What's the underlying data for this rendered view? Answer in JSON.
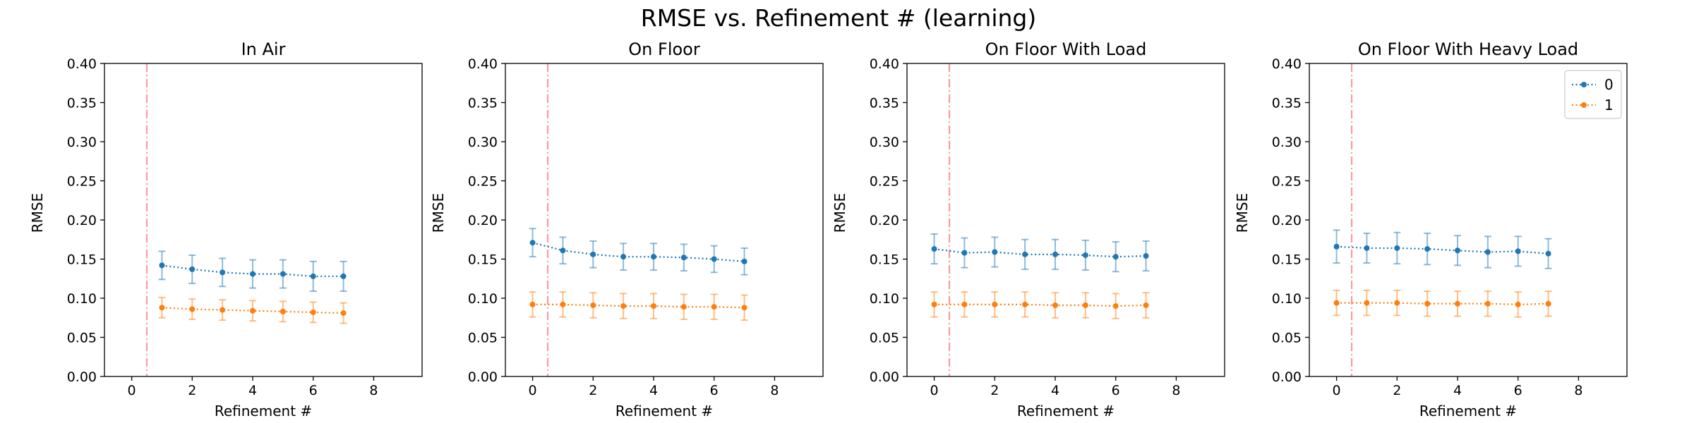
{
  "title": "RMSE vs. Refinement # (learning)",
  "colors": {
    "series_0": "#1f77b4",
    "series_1": "#ff7f0e",
    "vline": "#ff9a9a",
    "axes": "#000000"
  },
  "chart_data": [
    {
      "type": "line",
      "title": "In Air",
      "xlabel": "Refinement #",
      "ylabel": "RMSE",
      "xlim": [
        -0.9,
        9.6
      ],
      "ylim": [
        0,
        0.4
      ],
      "xticks": [
        0,
        2,
        4,
        6,
        8
      ],
      "yticks": [
        0.0,
        0.05,
        0.1,
        0.15,
        0.2,
        0.25,
        0.3,
        0.35,
        0.4
      ],
      "vline": 0.5,
      "series": [
        {
          "name": "0",
          "x": [
            1,
            2,
            3,
            4,
            5,
            6,
            7
          ],
          "values": [
            0.142,
            0.137,
            0.133,
            0.131,
            0.131,
            0.128,
            0.128
          ],
          "errors": [
            0.018,
            0.018,
            0.018,
            0.018,
            0.018,
            0.019,
            0.019
          ]
        },
        {
          "name": "1",
          "x": [
            1,
            2,
            3,
            4,
            5,
            6,
            7
          ],
          "values": [
            0.088,
            0.086,
            0.085,
            0.084,
            0.083,
            0.082,
            0.081
          ],
          "errors": [
            0.013,
            0.013,
            0.013,
            0.013,
            0.013,
            0.013,
            0.013
          ]
        }
      ]
    },
    {
      "type": "line",
      "title": "On Floor",
      "xlabel": "Refinement #",
      "ylabel": "RMSE",
      "xlim": [
        -0.9,
        9.6
      ],
      "ylim": [
        0,
        0.4
      ],
      "xticks": [
        0,
        2,
        4,
        6,
        8
      ],
      "yticks": [
        0.0,
        0.05,
        0.1,
        0.15,
        0.2,
        0.25,
        0.3,
        0.35,
        0.4
      ],
      "vline": 0.5,
      "series": [
        {
          "name": "0",
          "x": [
            0,
            1,
            2,
            3,
            4,
            5,
            6,
            7
          ],
          "values": [
            0.171,
            0.161,
            0.156,
            0.153,
            0.153,
            0.152,
            0.15,
            0.147
          ],
          "errors": [
            0.018,
            0.017,
            0.017,
            0.017,
            0.017,
            0.017,
            0.017,
            0.017
          ]
        },
        {
          "name": "1",
          "x": [
            0,
            1,
            2,
            3,
            4,
            5,
            6,
            7
          ],
          "values": [
            0.092,
            0.092,
            0.091,
            0.09,
            0.09,
            0.089,
            0.089,
            0.088
          ],
          "errors": [
            0.016,
            0.016,
            0.016,
            0.016,
            0.016,
            0.016,
            0.016,
            0.016
          ]
        }
      ]
    },
    {
      "type": "line",
      "title": "On Floor With Load",
      "xlabel": "Refinement #",
      "ylabel": "RMSE",
      "xlim": [
        -0.9,
        9.6
      ],
      "ylim": [
        0,
        0.4
      ],
      "xticks": [
        0,
        2,
        4,
        6,
        8
      ],
      "yticks": [
        0.0,
        0.05,
        0.1,
        0.15,
        0.2,
        0.25,
        0.3,
        0.35,
        0.4
      ],
      "vline": 0.5,
      "series": [
        {
          "name": "0",
          "x": [
            0,
            1,
            2,
            3,
            4,
            5,
            6,
            7
          ],
          "values": [
            0.163,
            0.158,
            0.159,
            0.156,
            0.156,
            0.155,
            0.153,
            0.154
          ],
          "errors": [
            0.019,
            0.019,
            0.019,
            0.019,
            0.019,
            0.019,
            0.019,
            0.019
          ]
        },
        {
          "name": "1",
          "x": [
            0,
            1,
            2,
            3,
            4,
            5,
            6,
            7
          ],
          "values": [
            0.092,
            0.092,
            0.092,
            0.092,
            0.091,
            0.091,
            0.09,
            0.091
          ],
          "errors": [
            0.016,
            0.016,
            0.016,
            0.016,
            0.016,
            0.016,
            0.016,
            0.016
          ]
        }
      ]
    },
    {
      "type": "line",
      "title": "On Floor With Heavy Load",
      "xlabel": "Refinement #",
      "ylabel": "RMSE",
      "xlim": [
        -0.9,
        9.6
      ],
      "ylim": [
        0,
        0.4
      ],
      "xticks": [
        0,
        2,
        4,
        6,
        8
      ],
      "yticks": [
        0.0,
        0.05,
        0.1,
        0.15,
        0.2,
        0.25,
        0.3,
        0.35,
        0.4
      ],
      "vline": 0.5,
      "series": [
        {
          "name": "0",
          "x": [
            0,
            1,
            2,
            3,
            4,
            5,
            6,
            7
          ],
          "values": [
            0.166,
            0.164,
            0.164,
            0.163,
            0.161,
            0.159,
            0.16,
            0.157
          ],
          "errors": [
            0.021,
            0.019,
            0.02,
            0.02,
            0.019,
            0.02,
            0.019,
            0.019
          ]
        },
        {
          "name": "1",
          "x": [
            0,
            1,
            2,
            3,
            4,
            5,
            6,
            7
          ],
          "values": [
            0.094,
            0.094,
            0.094,
            0.093,
            0.093,
            0.093,
            0.092,
            0.093
          ],
          "errors": [
            0.016,
            0.016,
            0.016,
            0.016,
            0.016,
            0.016,
            0.016,
            0.016
          ]
        }
      ],
      "legend": {
        "placement": "top-right",
        "entries": [
          "0",
          "1"
        ]
      }
    }
  ]
}
